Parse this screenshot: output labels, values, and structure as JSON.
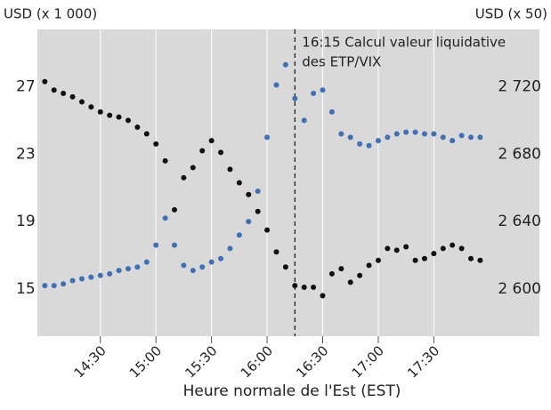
{
  "chart_data": {
    "type": "scatter",
    "ylabel": "USD (x 1 000)",
    "y2label": "USD (x 50)",
    "xlabel": "Heure normale de l'Est (EST)",
    "annotation": {
      "x": "16:15",
      "text": [
        "16:15 Calcul valeur liquidative",
        "des ETP/VIX"
      ]
    },
    "x": [
      "14:00",
      "14:05",
      "14:10",
      "14:15",
      "14:20",
      "14:25",
      "14:30",
      "14:35",
      "14:40",
      "14:45",
      "14:50",
      "14:55",
      "15:00",
      "15:05",
      "15:10",
      "15:15",
      "15:20",
      "15:25",
      "15:30",
      "15:35",
      "15:40",
      "15:45",
      "15:50",
      "15:55",
      "16:00",
      "16:05",
      "16:10",
      "16:15",
      "16:20",
      "16:25",
      "16:30",
      "16:35",
      "16:40",
      "16:45",
      "16:50",
      "16:55",
      "17:00",
      "17:05",
      "17:10",
      "17:15",
      "17:20",
      "17:25",
      "17:30",
      "17:35",
      "17:40",
      "17:45",
      "17:50",
      "17:55"
    ],
    "series": [
      {
        "color": "#111111",
        "axis": "y",
        "values": [
          27.3,
          26.8,
          26.6,
          26.4,
          26.1,
          25.8,
          25.5,
          25.3,
          25.2,
          25.0,
          24.6,
          24.2,
          23.6,
          22.6,
          19.7,
          21.6,
          22.2,
          23.2,
          23.8,
          23.1,
          22.1,
          21.3,
          20.6,
          19.6,
          18.5,
          17.2,
          16.3,
          15.2,
          15.1,
          15.1,
          14.6,
          15.9,
          16.2,
          15.4,
          15.8,
          16.4,
          16.7,
          17.4,
          17.3,
          17.5,
          16.7,
          16.8,
          17.1,
          17.4,
          17.6,
          17.4,
          16.8,
          16.7
        ]
      },
      {
        "color": "#3f6fb5",
        "axis": "y2",
        "values": [
          2602,
          2602,
          2603,
          2605,
          2606,
          2607,
          2608,
          2609,
          2611,
          2612,
          2613,
          2616,
          2626,
          2642,
          2626,
          2614,
          2611,
          2613,
          2616,
          2618,
          2624,
          2632,
          2640,
          2658,
          2690,
          2721,
          2733,
          2713,
          2700,
          2716,
          2718,
          2705,
          2692,
          2690,
          2686,
          2685,
          2688,
          2690,
          2692,
          2693,
          2693,
          2692,
          2692,
          2690,
          2688,
          2691,
          2690,
          2690
        ]
      }
    ],
    "xlim": [
      "13:56",
      "18:27"
    ],
    "xticks": [
      "14:30",
      "15:00",
      "15:30",
      "16:00",
      "16:30",
      "17:00",
      "17:30"
    ],
    "ylim": [
      12.2,
      30.4
    ],
    "yticks": [
      15,
      19,
      23,
      27
    ],
    "y2lim": [
      2572,
      2754
    ],
    "y2ticks": [
      {
        "value": 2600,
        "label": "2 600"
      },
      {
        "value": 2640,
        "label": "2 640"
      },
      {
        "value": 2680,
        "label": "2 680"
      },
      {
        "value": 2720,
        "label": "2 720"
      }
    ],
    "grid": "x"
  }
}
